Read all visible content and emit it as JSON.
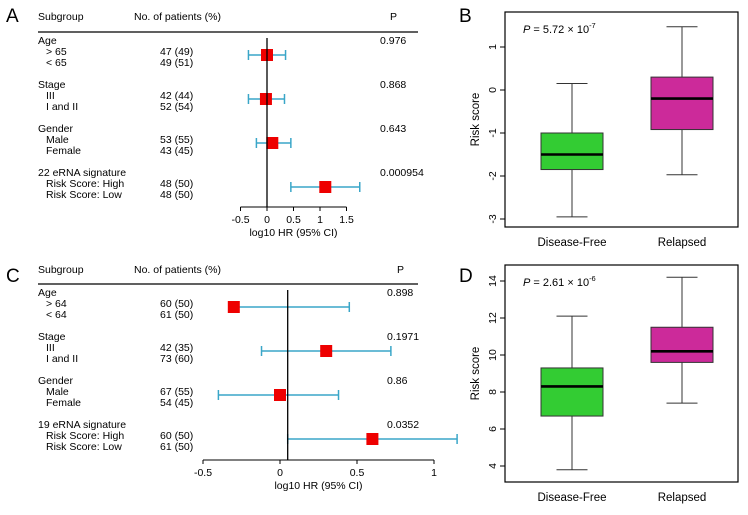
{
  "panel_labels": [
    "A",
    "B",
    "C",
    "D"
  ],
  "chart_data": [
    {
      "panel": "A",
      "type": "scatter",
      "subtype": "forest",
      "headers": {
        "subgroup": "Subgroup",
        "patients": "No. of patients (%)",
        "p": "P"
      },
      "xlabel": "log10 HR (95% CI)",
      "xlim": [
        -0.5,
        1.5
      ],
      "xticks": [
        "-0.5",
        "0",
        "0.5",
        "1",
        "1.5"
      ],
      "reference_x": 0,
      "groups": [
        {
          "name": "Age",
          "p": "0.976",
          "hr": 0.0,
          "ci": [
            -0.35,
            0.35
          ],
          "rows": [
            {
              "label": "> 65",
              "n": "47 (49)"
            },
            {
              "label": "< 65",
              "n": "49 (51)"
            }
          ]
        },
        {
          "name": "Stage",
          "p": "0.868",
          "hr": -0.02,
          "ci": [
            -0.35,
            0.33
          ],
          "rows": [
            {
              "label": "III",
              "n": "42 (44)"
            },
            {
              "label": "I and II",
              "n": "52 (54)"
            }
          ]
        },
        {
          "name": "Gender",
          "p": "0.643",
          "hr": 0.1,
          "ci": [
            -0.2,
            0.45
          ],
          "rows": [
            {
              "label": "Male",
              "n": "53 (55)"
            },
            {
              "label": "Female",
              "n": "43 (45)"
            }
          ]
        },
        {
          "name": "22 eRNA signature",
          "p": "0.000954",
          "hr": 1.1,
          "ci": [
            0.45,
            1.75
          ],
          "rows": [
            {
              "label": "Risk Score: High",
              "n": "48 (50)"
            },
            {
              "label": "Risk Score: Low",
              "n": "48 (50)"
            }
          ]
        }
      ]
    },
    {
      "panel": "B",
      "type": "box",
      "annotation": {
        "prefix": "P",
        "text": " = 5.72 × 10",
        "exponent": "-7"
      },
      "ylabel": "Risk score",
      "ylim": [
        -3.1,
        1.6
      ],
      "yticks": [
        -3,
        -2,
        -1,
        0,
        1
      ],
      "categories": [
        "Disease-Free",
        "Relapsed"
      ],
      "colors": [
        "#33cc33",
        "#cc2a9a"
      ],
      "boxes": [
        {
          "min": -2.95,
          "q1": -1.85,
          "median": -1.5,
          "q3": -1.0,
          "max": 0.15
        },
        {
          "min": -1.97,
          "q1": -0.92,
          "median": -0.2,
          "q3": 0.3,
          "max": 1.47
        }
      ]
    },
    {
      "panel": "C",
      "type": "scatter",
      "subtype": "forest",
      "headers": {
        "subgroup": "Subgroup",
        "patients": "No. of patients (%)",
        "p": "P"
      },
      "xlabel": "log10 HR (95% CI)",
      "xlim": [
        -0.5,
        1.0
      ],
      "xticks": [
        "-0.5",
        "0",
        "0.5",
        "1"
      ],
      "reference_x": 0.05,
      "groups": [
        {
          "name": "Age",
          "p": "0.898",
          "hr": -0.3,
          "ci": [
            -0.3,
            0.45
          ],
          "rows": [
            {
              "label": "> 64",
              "n": "60 (50)"
            },
            {
              "label": "< 64",
              "n": "61 (50)"
            }
          ]
        },
        {
          "name": "Stage",
          "p": "0.1971",
          "hr": 0.3,
          "ci": [
            -0.12,
            0.72
          ],
          "rows": [
            {
              "label": "III",
              "n": "42 (35)"
            },
            {
              "label": "I and II",
              "n": "73 (60)"
            }
          ]
        },
        {
          "name": "Gender",
          "p": "0.86",
          "hr": 0.0,
          "ci": [
            -0.4,
            0.38
          ],
          "rows": [
            {
              "label": "Male",
              "n": "67 (55)"
            },
            {
              "label": "Female",
              "n": "54 (45)"
            }
          ]
        },
        {
          "name": "19 eRNA signature",
          "p": "0.0352",
          "hr": 0.6,
          "ci": [
            0.05,
            1.15
          ],
          "rows": [
            {
              "label": "Risk Score: High",
              "n": "60 (50)"
            },
            {
              "label": "Risk Score: Low",
              "n": "61 (50)"
            }
          ]
        }
      ]
    },
    {
      "panel": "D",
      "type": "box",
      "annotation": {
        "prefix": "P",
        "text": " = 2.61 × 10",
        "exponent": "-6"
      },
      "ylabel": "Risk score",
      "ylim": [
        3.5,
        14.6
      ],
      "yticks": [
        4,
        6,
        8,
        10,
        12,
        14
      ],
      "categories": [
        "Disease-Free",
        "Relapsed"
      ],
      "colors": [
        "#33cc33",
        "#cc2a9a"
      ],
      "boxes": [
        {
          "min": 3.8,
          "q1": 6.7,
          "median": 8.3,
          "q3": 9.3,
          "max": 12.1
        },
        {
          "min": 7.4,
          "q1": 9.6,
          "median": 10.2,
          "q3": 11.5,
          "max": 14.2
        }
      ]
    }
  ],
  "colors": {
    "ci_line": "#3aa6c8",
    "marker": "#ee0000",
    "axis": "#000000"
  }
}
